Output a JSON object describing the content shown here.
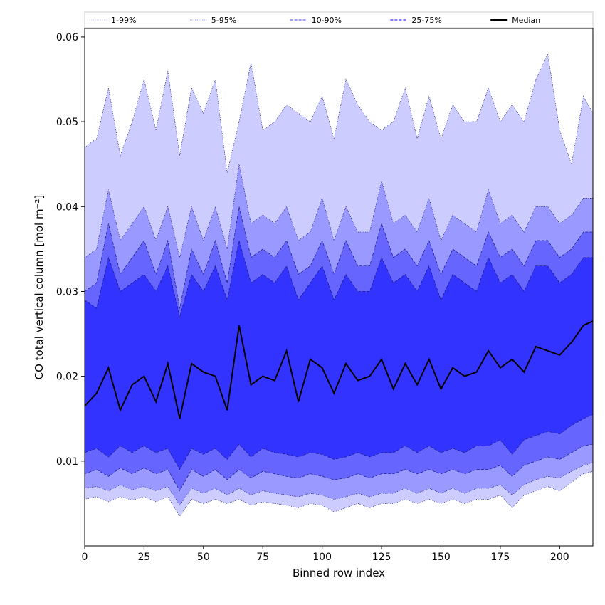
{
  "chart_data": {
    "type": "area",
    "title": "",
    "xlabel": "Binned row index",
    "ylabel": "CO total vertical column [mol m⁻²]",
    "xlim": [
      0,
      214
    ],
    "ylim": [
      0,
      0.061
    ],
    "xticks": [
      0,
      25,
      50,
      75,
      100,
      125,
      150,
      175,
      200
    ],
    "yticks": [
      0.01,
      0.02,
      0.03,
      0.04,
      0.05,
      0.06
    ],
    "ytick_labels": [
      "0.01",
      "0.02",
      "0.03",
      "0.04",
      "0.05",
      "0.06"
    ],
    "grid": false,
    "legend_position": "top",
    "x": [
      0,
      5,
      10,
      15,
      20,
      25,
      30,
      35,
      40,
      45,
      50,
      55,
      60,
      65,
      70,
      75,
      80,
      85,
      90,
      95,
      100,
      105,
      110,
      115,
      120,
      125,
      130,
      135,
      140,
      145,
      150,
      155,
      160,
      165,
      170,
      175,
      180,
      185,
      190,
      195,
      200,
      205,
      210,
      214
    ],
    "series": [
      {
        "name": "1-99%",
        "style": "dotted",
        "color": "#ccccff",
        "lower": [
          0.0055,
          0.0058,
          0.0052,
          0.0058,
          0.0054,
          0.0058,
          0.0052,
          0.0058,
          0.0035,
          0.0055,
          0.005,
          0.0055,
          0.005,
          0.0055,
          0.0048,
          0.0052,
          0.005,
          0.0048,
          0.0045,
          0.005,
          0.0048,
          0.004,
          0.0045,
          0.005,
          0.0045,
          0.005,
          0.005,
          0.0055,
          0.005,
          0.0055,
          0.005,
          0.0055,
          0.005,
          0.0055,
          0.0055,
          0.006,
          0.0045,
          0.006,
          0.0065,
          0.007,
          0.0065,
          0.0075,
          0.0085,
          0.0088
        ],
        "upper": [
          0.047,
          0.048,
          0.054,
          0.046,
          0.05,
          0.055,
          0.049,
          0.056,
          0.046,
          0.054,
          0.051,
          0.055,
          0.044,
          0.05,
          0.057,
          0.049,
          0.05,
          0.052,
          0.051,
          0.05,
          0.053,
          0.048,
          0.055,
          0.052,
          0.05,
          0.049,
          0.05,
          0.054,
          0.048,
          0.053,
          0.048,
          0.052,
          0.05,
          0.05,
          0.054,
          0.05,
          0.052,
          0.05,
          0.055,
          0.058,
          0.049,
          0.045,
          0.053,
          0.051
        ]
      },
      {
        "name": "5-95%",
        "style": "dotted",
        "color": "#9999ff",
        "lower": [
          0.0068,
          0.007,
          0.0065,
          0.0072,
          0.0066,
          0.007,
          0.0065,
          0.007,
          0.0048,
          0.0068,
          0.0062,
          0.0068,
          0.006,
          0.0068,
          0.006,
          0.0065,
          0.0062,
          0.006,
          0.0058,
          0.0062,
          0.006,
          0.0055,
          0.0058,
          0.0062,
          0.0058,
          0.0062,
          0.0062,
          0.0068,
          0.0062,
          0.0068,
          0.0062,
          0.0068,
          0.0062,
          0.0068,
          0.0068,
          0.0072,
          0.006,
          0.0072,
          0.0078,
          0.0082,
          0.008,
          0.0088,
          0.0095,
          0.0098
        ],
        "upper": [
          0.034,
          0.035,
          0.042,
          0.036,
          0.038,
          0.04,
          0.036,
          0.04,
          0.034,
          0.04,
          0.036,
          0.04,
          0.035,
          0.045,
          0.038,
          0.039,
          0.038,
          0.04,
          0.036,
          0.037,
          0.041,
          0.036,
          0.04,
          0.037,
          0.037,
          0.043,
          0.038,
          0.039,
          0.037,
          0.041,
          0.036,
          0.039,
          0.038,
          0.037,
          0.042,
          0.038,
          0.039,
          0.037,
          0.04,
          0.04,
          0.038,
          0.039,
          0.041,
          0.041
        ]
      },
      {
        "name": "10-90%",
        "style": "dashed",
        "color": "#6666ff",
        "lower": [
          0.0085,
          0.009,
          0.0082,
          0.0092,
          0.0085,
          0.0092,
          0.0085,
          0.009,
          0.0065,
          0.009,
          0.0082,
          0.009,
          0.0078,
          0.009,
          0.008,
          0.0088,
          0.0085,
          0.0082,
          0.008,
          0.0085,
          0.0082,
          0.0078,
          0.008,
          0.0085,
          0.008,
          0.0085,
          0.0085,
          0.009,
          0.0085,
          0.009,
          0.0085,
          0.009,
          0.0085,
          0.009,
          0.009,
          0.0095,
          0.0082,
          0.0095,
          0.01,
          0.0105,
          0.0102,
          0.011,
          0.0118,
          0.012
        ],
        "upper": [
          0.03,
          0.031,
          0.038,
          0.032,
          0.034,
          0.036,
          0.032,
          0.036,
          0.028,
          0.035,
          0.032,
          0.036,
          0.031,
          0.04,
          0.034,
          0.035,
          0.034,
          0.036,
          0.032,
          0.033,
          0.036,
          0.032,
          0.036,
          0.033,
          0.033,
          0.038,
          0.034,
          0.035,
          0.033,
          0.036,
          0.032,
          0.035,
          0.034,
          0.033,
          0.037,
          0.034,
          0.035,
          0.033,
          0.036,
          0.036,
          0.034,
          0.035,
          0.037,
          0.037
        ]
      },
      {
        "name": "25-75%",
        "style": "dashed",
        "color": "#3333ff",
        "lower": [
          0.011,
          0.0115,
          0.0105,
          0.0118,
          0.011,
          0.0118,
          0.011,
          0.0115,
          0.009,
          0.0115,
          0.0108,
          0.0115,
          0.0102,
          0.012,
          0.0105,
          0.0115,
          0.011,
          0.0108,
          0.0105,
          0.011,
          0.0108,
          0.0102,
          0.0105,
          0.011,
          0.0105,
          0.011,
          0.011,
          0.0118,
          0.011,
          0.0118,
          0.011,
          0.0115,
          0.011,
          0.0118,
          0.0118,
          0.0125,
          0.0108,
          0.0125,
          0.013,
          0.0135,
          0.0132,
          0.0142,
          0.015,
          0.0155
        ],
        "upper": [
          0.029,
          0.028,
          0.034,
          0.03,
          0.031,
          0.032,
          0.03,
          0.033,
          0.027,
          0.032,
          0.03,
          0.033,
          0.029,
          0.036,
          0.031,
          0.032,
          0.031,
          0.033,
          0.029,
          0.031,
          0.033,
          0.029,
          0.032,
          0.03,
          0.03,
          0.034,
          0.031,
          0.032,
          0.03,
          0.033,
          0.029,
          0.032,
          0.031,
          0.03,
          0.034,
          0.031,
          0.032,
          0.03,
          0.033,
          0.033,
          0.031,
          0.032,
          0.034,
          0.034
        ]
      },
      {
        "name": "Median",
        "style": "solid",
        "color": "#000000",
        "values": [
          0.0165,
          0.018,
          0.021,
          0.016,
          0.019,
          0.02,
          0.017,
          0.0215,
          0.015,
          0.0215,
          0.0205,
          0.02,
          0.016,
          0.026,
          0.019,
          0.02,
          0.0195,
          0.023,
          0.017,
          0.022,
          0.021,
          0.018,
          0.0215,
          0.0195,
          0.02,
          0.022,
          0.0185,
          0.0215,
          0.019,
          0.022,
          0.0185,
          0.021,
          0.02,
          0.0205,
          0.023,
          0.021,
          0.022,
          0.0205,
          0.0235,
          0.023,
          0.0225,
          0.024,
          0.026,
          0.0265
        ]
      }
    ]
  }
}
